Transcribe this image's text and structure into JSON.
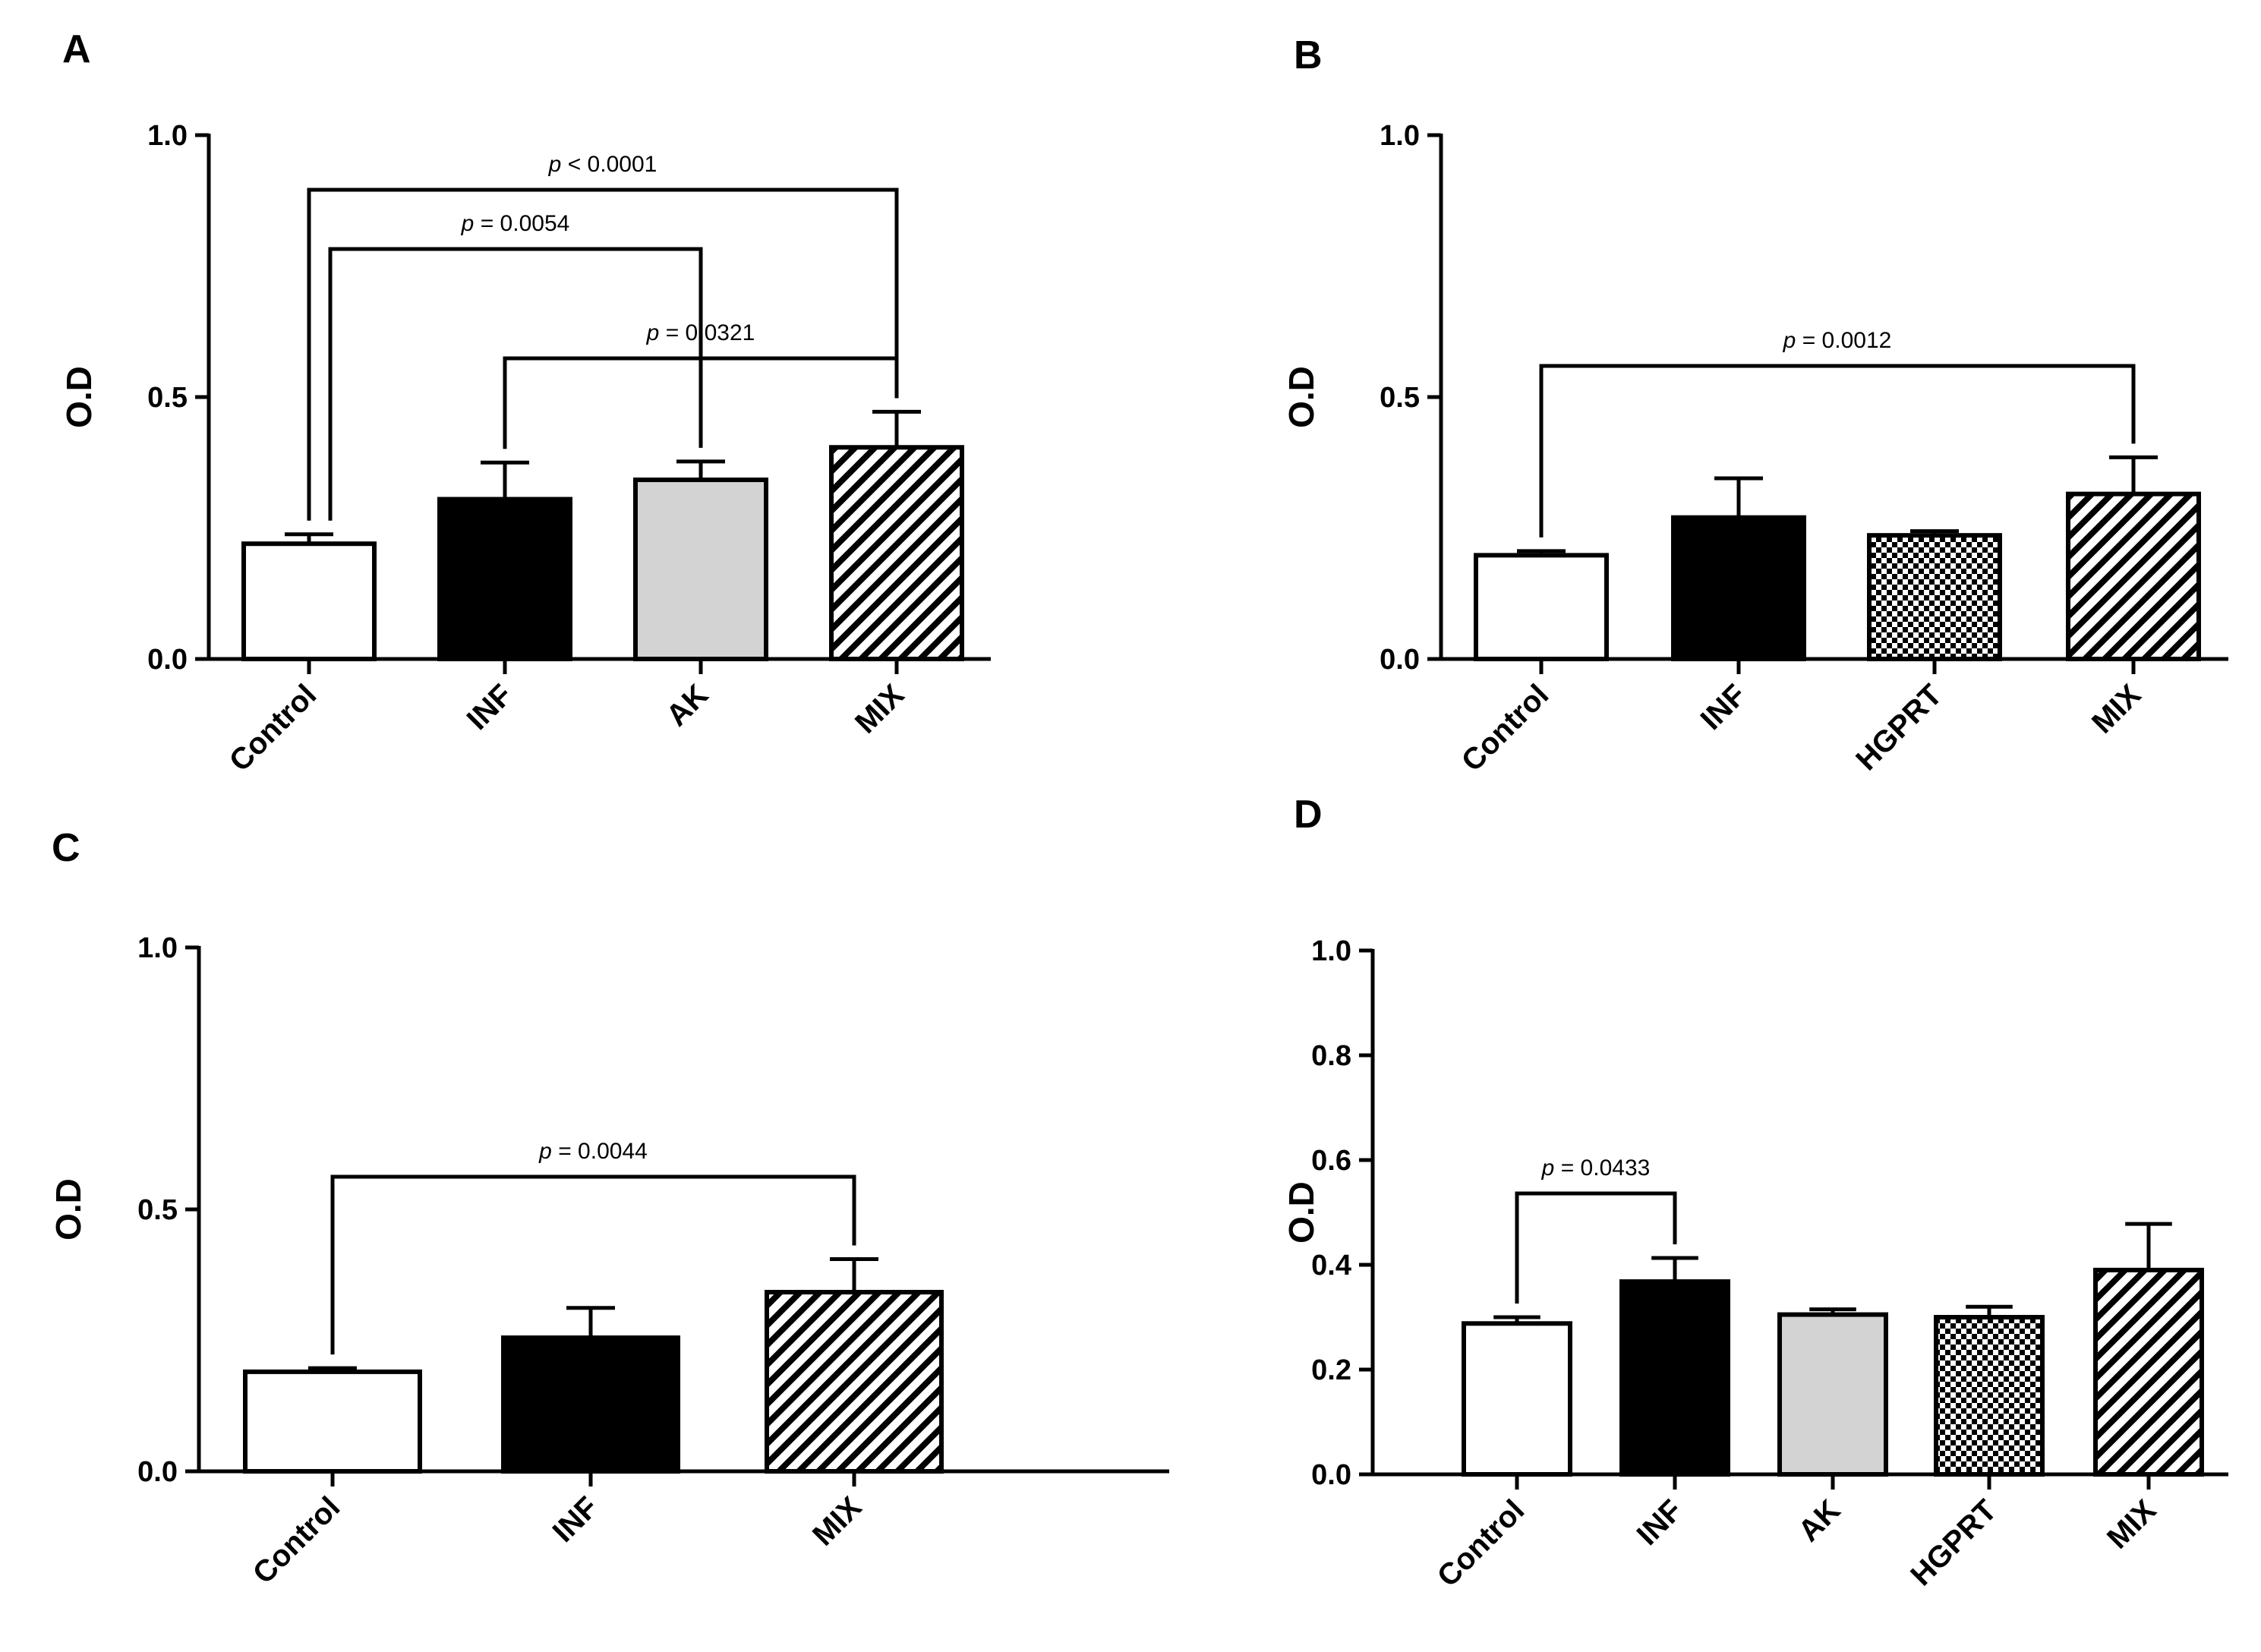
{
  "chart_data": [
    {
      "panel": "A",
      "type": "bar",
      "ylabel": "O.D",
      "ylim": [
        0,
        1.0
      ],
      "yticks": [
        0.0,
        0.5,
        1.0
      ],
      "ytick_labels": [
        "0.0",
        "0.5",
        "1.0"
      ],
      "categories": [
        "Control",
        "INF",
        "AK",
        "MIX"
      ],
      "values": [
        0.22,
        0.305,
        0.342,
        0.404
      ],
      "errors": [
        0.018,
        0.07,
        0.035,
        0.068
      ],
      "patterns": [
        "white",
        "black",
        "gray",
        "hatch"
      ],
      "comparisons": [
        {
          "from": 0,
          "to": 3,
          "p_prefix": "p",
          "p_text": " < 0.0001"
        },
        {
          "from": 0,
          "to": 2,
          "p_prefix": "p",
          "p_text": " = 0.0054"
        },
        {
          "from": 1,
          "to": 3,
          "p_prefix": "p",
          "p_text": " = 0.0321"
        }
      ]
    },
    {
      "panel": "B",
      "type": "bar",
      "ylabel": "O.D",
      "ylim": [
        0,
        1.0
      ],
      "yticks": [
        0.0,
        0.5,
        1.0
      ],
      "ytick_labels": [
        "0.0",
        "0.5",
        "1.0"
      ],
      "categories": [
        "Control",
        "INF",
        "HGPRT",
        "MIX"
      ],
      "values": [
        0.198,
        0.27,
        0.236,
        0.315
      ],
      "errors": [
        0.008,
        0.075,
        0.008,
        0.07
      ],
      "patterns": [
        "white",
        "black",
        "check",
        "hatch"
      ],
      "comparisons": [
        {
          "from": 0,
          "to": 3,
          "p_prefix": "p",
          "p_text": " = 0.0012"
        }
      ]
    },
    {
      "panel": "C",
      "type": "bar",
      "ylabel": "O.D",
      "ylim": [
        0,
        1.0
      ],
      "yticks": [
        0.0,
        0.5,
        1.0
      ],
      "ytick_labels": [
        "0.0",
        "0.5",
        "1.0"
      ],
      "categories": [
        "Control",
        "INF",
        "MIX"
      ],
      "values": [
        0.19,
        0.255,
        0.342
      ],
      "errors": [
        0.007,
        0.057,
        0.063
      ],
      "patterns": [
        "white",
        "black",
        "hatch"
      ],
      "comparisons": [
        {
          "from": 0,
          "to": 2,
          "p_prefix": "p",
          "p_text": " = 0.0044"
        }
      ]
    },
    {
      "panel": "D",
      "type": "bar",
      "ylabel": "O.D",
      "ylim": [
        0,
        1.0
      ],
      "yticks": [
        0.0,
        0.2,
        0.4,
        0.6,
        0.8,
        1.0
      ],
      "ytick_labels": [
        "0.0",
        "0.2",
        "0.4",
        "0.6",
        "0.8",
        "1.0"
      ],
      "categories": [
        "Control",
        "INF",
        "AK",
        "HGPRT",
        "MIX"
      ],
      "values": [
        0.288,
        0.368,
        0.305,
        0.3,
        0.39
      ],
      "errors": [
        0.012,
        0.045,
        0.01,
        0.02,
        0.088
      ],
      "patterns": [
        "white",
        "black",
        "gray",
        "check",
        "hatch"
      ],
      "comparisons": [
        {
          "from": 0,
          "to": 1,
          "p_prefix": "p",
          "p_text": " = 0.0433"
        }
      ]
    }
  ]
}
